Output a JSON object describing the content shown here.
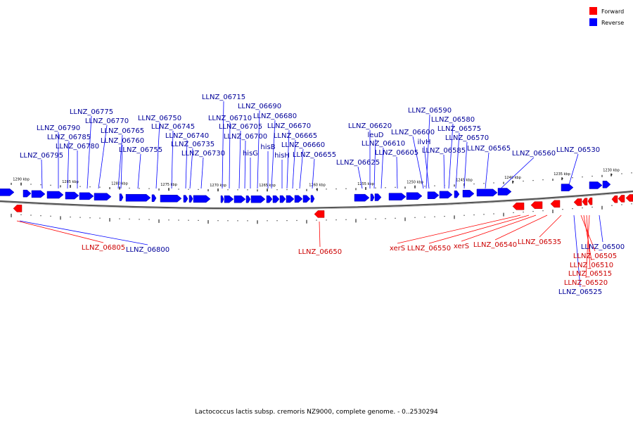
{
  "legend": [
    {
      "label": "Forward",
      "color": "#ff0000"
    },
    {
      "label": "Reverse",
      "color": "#0000ff"
    }
  ],
  "caption": "Lactococcus lactis subsp. cremoris NZ9000, complete genome. - 0..2530294",
  "colors": {
    "forward": "#ff0000",
    "reverse": "#0000ff",
    "forward_text": "#cc0000",
    "reverse_text": "#000099",
    "backbone": "#888888"
  },
  "ticks": [
    {
      "label": "1290 kbp"
    },
    {
      "label": "1285 kbp"
    },
    {
      "label": "1280 kbp"
    },
    {
      "label": "1275 kbp"
    },
    {
      "label": "1270 kbp"
    },
    {
      "label": "1265 kbp"
    },
    {
      "label": "1260 kbp"
    },
    {
      "label": "1255 kbp"
    },
    {
      "label": "1250 kbp"
    },
    {
      "label": "1245 kbp"
    },
    {
      "label": "1240 kbp"
    },
    {
      "label": "1235 kbp"
    },
    {
      "label": "1230 kbp"
    }
  ],
  "reverse_genes": [
    "LLNZ_06775",
    "LLNZ_06770",
    "LLNZ_06790",
    "LLNZ_06765",
    "LLNZ_06785",
    "LLNZ_06760",
    "LLNZ_06780",
    "LLNZ_06795",
    "LLNZ_06755",
    "LLNZ_06750",
    "LLNZ_06745",
    "LLNZ_06740",
    "LLNZ_06735",
    "LLNZ_06730",
    "LLNZ_06715",
    "LLNZ_06690",
    "LLNZ_06710",
    "LLNZ_06680",
    "LLNZ_06705",
    "LLNZ_06670",
    "LLNZ_06700",
    "LLNZ_06665",
    "hisB",
    "LLNZ_06660",
    "hisG",
    "hisH",
    "LLNZ_06655",
    "LLNZ_06620",
    "leuD",
    "LLNZ_06610",
    "LLNZ_06625",
    "LLNZ_06605",
    "LLNZ_06590",
    "LLNZ_06580",
    "LLNZ_06600",
    "LLNZ_06575",
    "ilvH",
    "LLNZ_06570",
    "LLNZ_06585",
    "LLNZ_06565",
    "LLNZ_06560",
    "LLNZ_06530",
    "LLNZ_06800",
    "LLNZ_06500",
    "LLNZ_06525"
  ],
  "forward_genes": [
    "LLNZ_06805",
    "LLNZ_06650",
    "xerS",
    "LLNZ_06550",
    "xerS",
    "LLNZ_06540",
    "LLNZ_06535",
    "LLNZ_06505",
    "LLNZ_06510",
    "LLNZ_06515",
    "LLNZ_06520"
  ]
}
